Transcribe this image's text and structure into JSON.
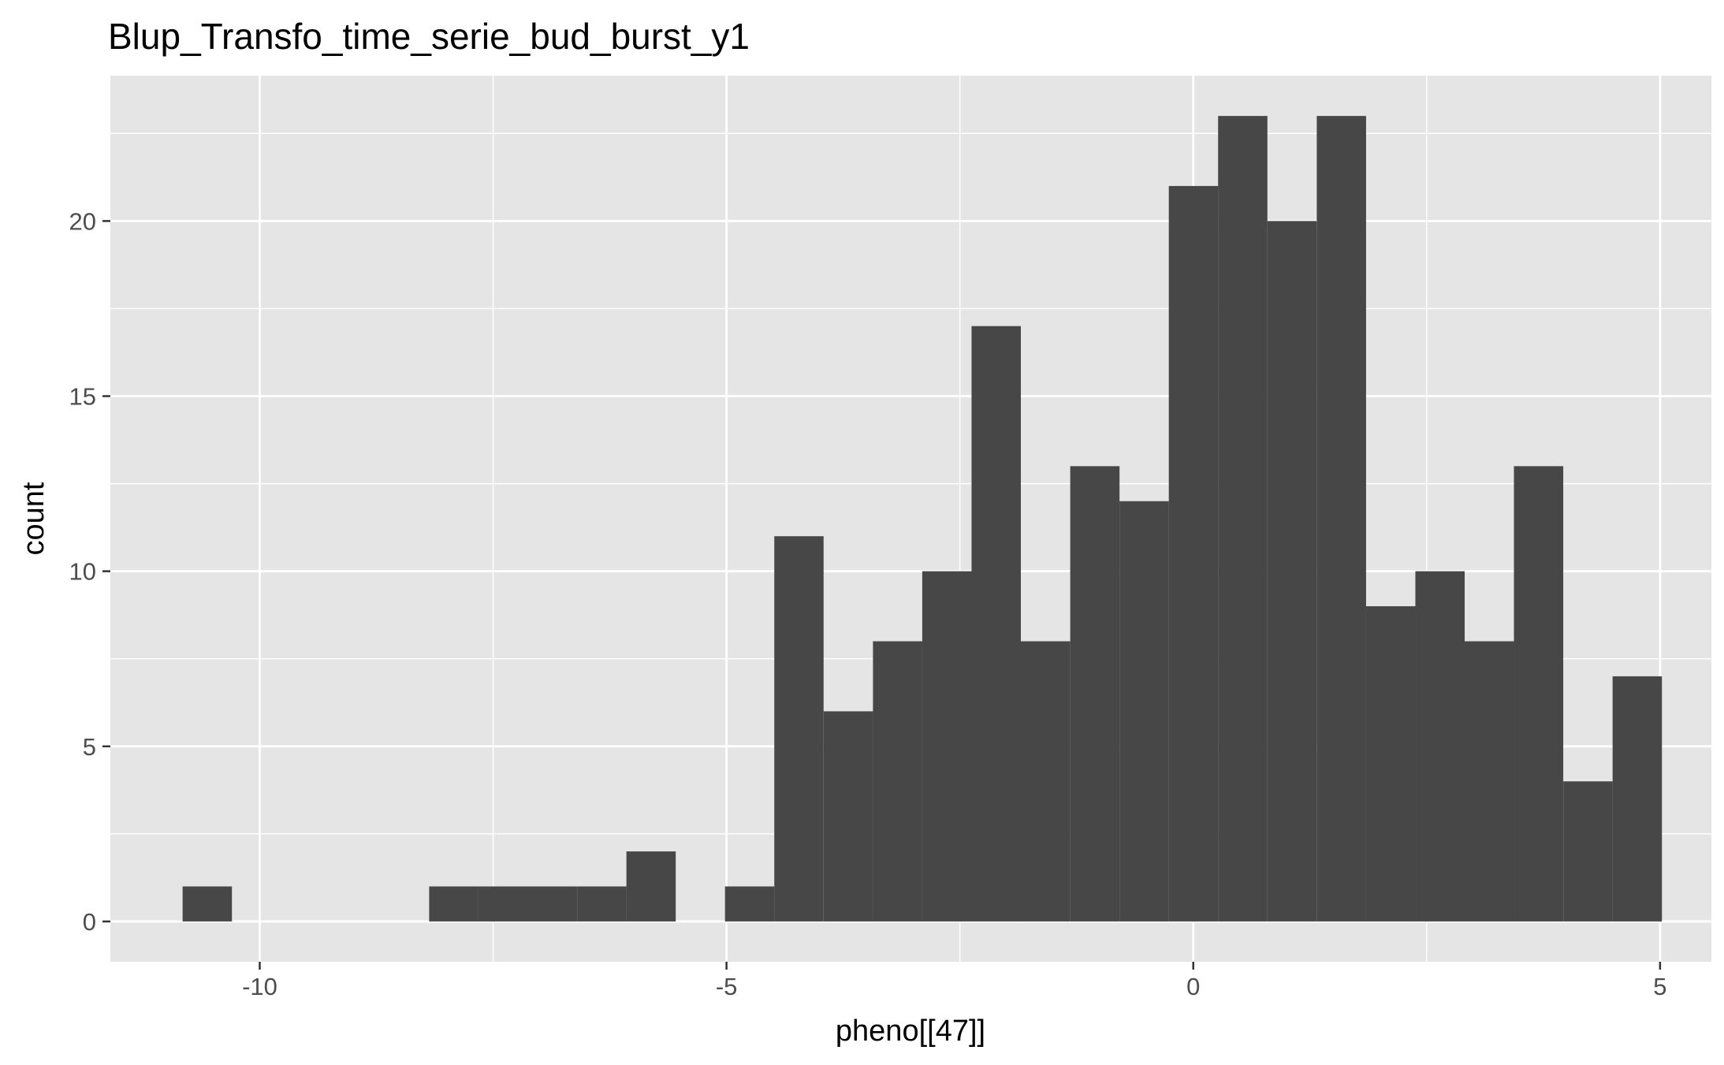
{
  "chart_data": {
    "type": "bar",
    "title": "Blup_Transfo_time_serie_bud_burst_y1",
    "xlabel": "pheno[[47]]",
    "ylabel": "count",
    "xlim": [
      -11.6,
      5.55
    ],
    "ylim": [
      -1.15,
      24.15
    ],
    "x_ticks": [
      -10,
      -5,
      0,
      5
    ],
    "x_tick_labels": [
      "-10",
      "-5",
      "0",
      "5"
    ],
    "y_ticks": [
      0,
      5,
      10,
      15,
      20
    ],
    "y_tick_labels": [
      "0",
      "5",
      "10",
      "15",
      "20"
    ],
    "bin_width": 0.5282,
    "bin_centers": [
      -10.562,
      -10.034,
      -9.506,
      -8.977,
      -8.449,
      -7.921,
      -7.393,
      -6.865,
      -6.336,
      -5.808,
      -5.28,
      -4.752,
      -4.224,
      -3.695,
      -3.167,
      -2.639,
      -2.111,
      -1.583,
      -1.054,
      -0.526,
      0.002,
      0.53,
      1.058,
      1.587,
      2.115,
      2.643,
      3.171,
      3.699,
      4.228,
      4.756
    ],
    "counts": [
      1,
      0,
      0,
      0,
      0,
      1,
      1,
      1,
      1,
      2,
      0,
      1,
      11,
      6,
      8,
      10,
      17,
      8,
      13,
      12,
      21,
      23,
      20,
      23,
      9,
      10,
      8,
      13,
      4,
      7
    ],
    "bar_color": "#474747",
    "panel_color": "#e5e5e5",
    "grid_color": "#ffffff",
    "grid": true,
    "legend": "none"
  }
}
